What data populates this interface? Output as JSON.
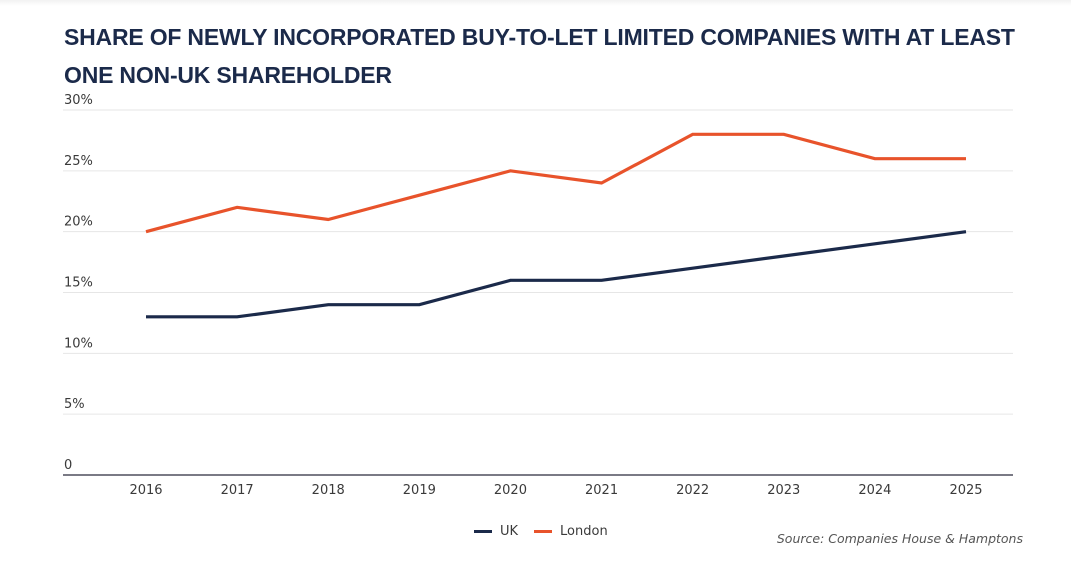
{
  "chart_data": {
    "type": "line",
    "title": "SHARE OF NEWLY INCORPORATED BUY-TO-LET LIMITED COMPANIES WITH AT LEAST ONE NON-UK SHAREHOLDER",
    "xlabel": "",
    "ylabel": "",
    "categories": [
      "2016",
      "2017",
      "2018",
      "2019",
      "2020",
      "2021",
      "2022",
      "2023",
      "2024",
      "2025"
    ],
    "series": [
      {
        "name": "UK",
        "color": "#1b2a4a",
        "values": [
          13,
          13,
          14,
          14,
          16,
          16,
          17,
          18,
          19,
          20
        ]
      },
      {
        "name": "London",
        "color": "#e8532b",
        "values": [
          20,
          22,
          21,
          23,
          25,
          24,
          28,
          28,
          26,
          26
        ]
      }
    ],
    "ylim": [
      0,
      30
    ],
    "yticks": [
      0,
      5,
      10,
      15,
      20,
      25,
      30
    ],
    "ytick_labels": [
      "0",
      "5%",
      "10%",
      "15%",
      "20%",
      "25%",
      "30%"
    ],
    "grid": true,
    "legend_position": "bottom-center"
  },
  "source": "Source: Companies House & Hamptons"
}
